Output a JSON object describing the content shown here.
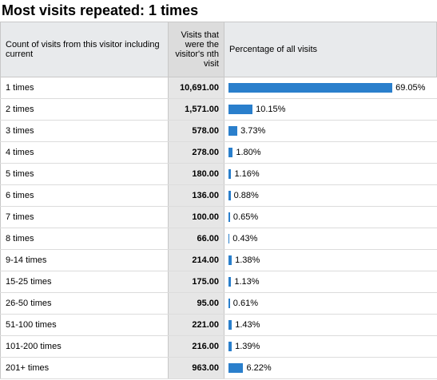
{
  "title": "Most visits repeated: 1 times",
  "table": {
    "headers": [
      "Count of visits from this visitor including current",
      "Visits that were the visitor's nth visit",
      "Percentage of all visits"
    ],
    "rows": [
      {
        "label": "1 times",
        "visits": "10,691.00",
        "percent": {
          "value": 69.05,
          "label": "69.05%"
        }
      },
      {
        "label": "2 times",
        "visits": "1,571.00",
        "percent": {
          "value": 10.15,
          "label": "10.15%"
        }
      },
      {
        "label": "3 times",
        "visits": "578.00",
        "percent": {
          "value": 3.73,
          "label": "3.73%"
        }
      },
      {
        "label": "4 times",
        "visits": "278.00",
        "percent": {
          "value": 1.8,
          "label": "1.80%"
        }
      },
      {
        "label": "5 times",
        "visits": "180.00",
        "percent": {
          "value": 1.16,
          "label": "1.16%"
        }
      },
      {
        "label": "6 times",
        "visits": "136.00",
        "percent": {
          "value": 0.88,
          "label": "0.88%"
        }
      },
      {
        "label": "7 times",
        "visits": "100.00",
        "percent": {
          "value": 0.65,
          "label": "0.65%"
        }
      },
      {
        "label": "8 times",
        "visits": "66.00",
        "percent": {
          "value": 0.43,
          "label": "0.43%"
        }
      },
      {
        "label": "9-14 times",
        "visits": "214.00",
        "percent": {
          "value": 1.38,
          "label": "1.38%"
        }
      },
      {
        "label": "15-25 times",
        "visits": "175.00",
        "percent": {
          "value": 1.13,
          "label": "1.13%"
        }
      },
      {
        "label": "26-50 times",
        "visits": "95.00",
        "percent": {
          "value": 0.61,
          "label": "0.61%"
        }
      },
      {
        "label": "51-100 times",
        "visits": "221.00",
        "percent": {
          "value": 1.43,
          "label": "1.43%"
        }
      },
      {
        "label": "101-200 times",
        "visits": "216.00",
        "percent": {
          "value": 1.39,
          "label": "1.39%"
        }
      },
      {
        "label": "201+ times",
        "visits": "963.00",
        "percent": {
          "value": 6.22,
          "label": "6.22%"
        }
      }
    ]
  }
}
